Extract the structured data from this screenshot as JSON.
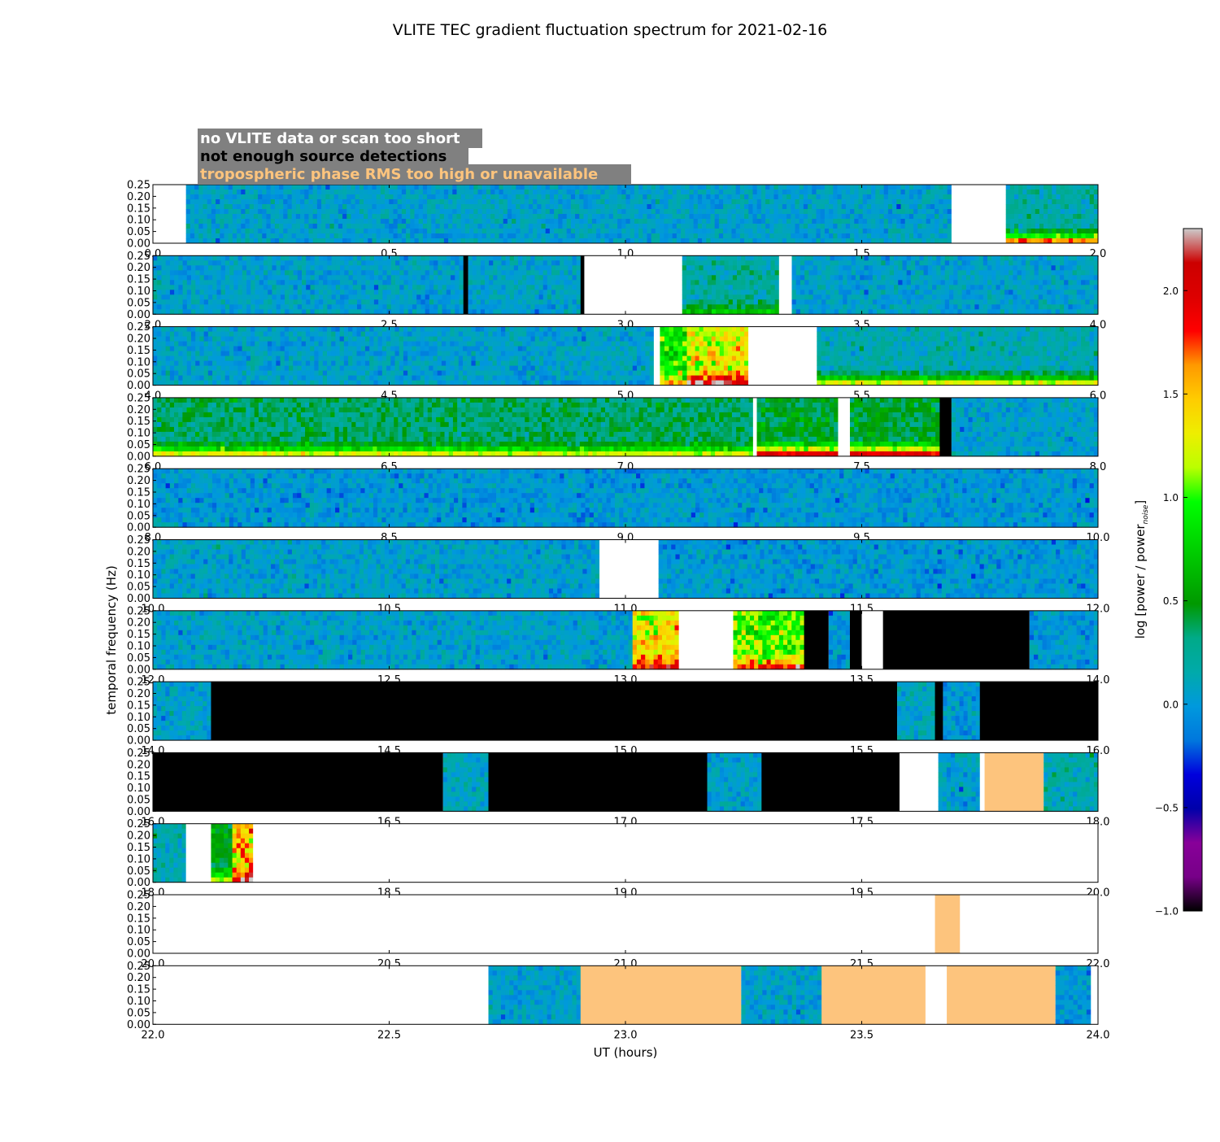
{
  "chart_data": {
    "type": "heatmap",
    "title": "VLITE TEC gradient fluctuation spectrum for 2021-02-16",
    "xlabel": "UT (hours)",
    "ylabel": "temporal frequency (Hz)",
    "ylim": [
      0,
      0.25
    ],
    "yticks": [
      "0.00",
      "0.05",
      "0.10",
      "0.15",
      "0.20",
      "0.25"
    ],
    "colorbar": {
      "label_main": "log [power / power",
      "label_sub": "noise",
      "label_end": "]",
      "range": [
        -1.0,
        2.3
      ],
      "ticks": [
        "−1.0",
        "−0.5",
        "0.0",
        "0.5",
        "1.0",
        "1.5",
        "2.0"
      ],
      "tick_values": [
        -1.0,
        -0.5,
        0.0,
        0.5,
        1.0,
        1.5,
        2.0
      ],
      "colormap": "nipy_spectral"
    },
    "legend": [
      {
        "text": "no VLITE data or scan too short",
        "color": "#ffffff"
      },
      {
        "text": "not enough source detections",
        "color": "#000000"
      },
      {
        "text": "tropospheric phase RMS too high or unavailable",
        "color": "#fdc47d"
      }
    ],
    "flag_colors": {
      "nodata": "#ffffff",
      "nodet": "#000000",
      "tropo": "#fdc47d"
    },
    "panels": [
      {
        "xlim": [
          0.0,
          2.0
        ],
        "xticks": [
          "0.0",
          "0.5",
          "1.0",
          "1.5",
          "2.0"
        ],
        "segments": [
          {
            "start": 0.0,
            "end": 0.07,
            "kind": "nodata"
          },
          {
            "start": 0.07,
            "end": 1.69,
            "kind": "data",
            "level": 0.05
          },
          {
            "start": 1.69,
            "end": 1.805,
            "kind": "nodata"
          },
          {
            "start": 1.805,
            "end": 2.0,
            "kind": "data",
            "level": 0.2,
            "low_boost": 1.4
          }
        ]
      },
      {
        "xlim": [
          2.0,
          4.0
        ],
        "xticks": [
          "2.0",
          "2.5",
          "3.0",
          "3.5",
          "4.0"
        ],
        "segments": [
          {
            "start": 2.0,
            "end": 2.657,
            "kind": "data",
            "level": 0.05
          },
          {
            "start": 2.657,
            "end": 2.667,
            "kind": "nodet"
          },
          {
            "start": 2.667,
            "end": 2.905,
            "kind": "data",
            "level": 0.05
          },
          {
            "start": 2.905,
            "end": 2.913,
            "kind": "nodet"
          },
          {
            "start": 2.913,
            "end": 3.12,
            "kind": "nodata"
          },
          {
            "start": 3.12,
            "end": 3.325,
            "kind": "data",
            "level": 0.2,
            "low_boost": 0.5
          },
          {
            "start": 3.325,
            "end": 3.352,
            "kind": "nodata"
          },
          {
            "start": 3.352,
            "end": 4.0,
            "kind": "data",
            "level": 0.05
          }
        ]
      },
      {
        "xlim": [
          4.0,
          6.0
        ],
        "xticks": [
          "4.0",
          "4.5",
          "5.0",
          "5.5",
          "6.0"
        ],
        "segments": [
          {
            "start": 4.0,
            "end": 5.06,
            "kind": "data",
            "level": 0.05
          },
          {
            "start": 5.06,
            "end": 5.073,
            "kind": "nodata"
          },
          {
            "start": 5.073,
            "end": 5.13,
            "kind": "data",
            "level": 0.85,
            "low_boost": 0.7
          },
          {
            "start": 5.13,
            "end": 5.26,
            "kind": "data",
            "level": 1.3,
            "low_boost": 0.9
          },
          {
            "start": 5.26,
            "end": 5.405,
            "kind": "nodata"
          },
          {
            "start": 5.405,
            "end": 6.0,
            "kind": "data",
            "level": 0.15,
            "low_boost": 1.1
          }
        ]
      },
      {
        "xlim": [
          6.0,
          8.0
        ],
        "xticks": [
          "6.0",
          "6.5",
          "7.0",
          "7.5",
          "8.0"
        ],
        "segments": [
          {
            "start": 6.0,
            "end": 7.27,
            "kind": "data",
            "level": 0.35,
            "low_boost": 0.9
          },
          {
            "start": 7.27,
            "end": 7.278,
            "kind": "nodata"
          },
          {
            "start": 7.278,
            "end": 7.45,
            "kind": "data",
            "level": 0.45,
            "low_boost": 1.5
          },
          {
            "start": 7.45,
            "end": 7.475,
            "kind": "nodata"
          },
          {
            "start": 7.475,
            "end": 7.665,
            "kind": "data",
            "level": 0.45,
            "low_boost": 1.5
          },
          {
            "start": 7.665,
            "end": 7.69,
            "kind": "nodet"
          },
          {
            "start": 7.69,
            "end": 8.0,
            "kind": "data",
            "level": 0.05
          }
        ]
      },
      {
        "xlim": [
          8.0,
          10.0
        ],
        "xticks": [
          "8.0",
          "8.5",
          "9.0",
          "9.5",
          "10.0"
        ],
        "segments": [
          {
            "start": 8.0,
            "end": 10.0,
            "kind": "data",
            "level": 0.0
          }
        ]
      },
      {
        "xlim": [
          10.0,
          12.0
        ],
        "xticks": [
          "10.0",
          "10.5",
          "11.0",
          "11.5",
          "12.0"
        ],
        "segments": [
          {
            "start": 10.0,
            "end": 10.945,
            "kind": "data",
            "level": 0.05
          },
          {
            "start": 10.945,
            "end": 11.07,
            "kind": "nodata"
          },
          {
            "start": 11.07,
            "end": 12.0,
            "kind": "data",
            "level": 0.0
          }
        ]
      },
      {
        "xlim": [
          12.0,
          14.0
        ],
        "xticks": [
          "12.0",
          "12.5",
          "13.0",
          "13.5",
          "14.0"
        ],
        "segments": [
          {
            "start": 12.0,
            "end": 13.015,
            "kind": "data",
            "level": 0.05
          },
          {
            "start": 13.015,
            "end": 13.113,
            "kind": "data",
            "level": 1.35,
            "low_boost": 0.6
          },
          {
            "start": 13.113,
            "end": 13.228,
            "kind": "nodata"
          },
          {
            "start": 13.228,
            "end": 13.378,
            "kind": "data",
            "level": 1.0,
            "low_boost": 0.8
          },
          {
            "start": 13.378,
            "end": 13.43,
            "kind": "nodet"
          },
          {
            "start": 13.43,
            "end": 13.475,
            "kind": "data",
            "level": 0.0
          },
          {
            "start": 13.475,
            "end": 13.5,
            "kind": "nodet"
          },
          {
            "start": 13.5,
            "end": 13.545,
            "kind": "nodata"
          },
          {
            "start": 13.545,
            "end": 13.855,
            "kind": "nodet"
          },
          {
            "start": 13.855,
            "end": 14.0,
            "kind": "data",
            "level": 0.0
          }
        ]
      },
      {
        "xlim": [
          14.0,
          16.0
        ],
        "xticks": [
          "14.0",
          "14.5",
          "15.0",
          "15.5",
          "16.0"
        ],
        "segments": [
          {
            "start": 14.0,
            "end": 14.123,
            "kind": "data",
            "level": 0.05
          },
          {
            "start": 14.123,
            "end": 15.575,
            "kind": "nodet"
          },
          {
            "start": 15.575,
            "end": 15.655,
            "kind": "data",
            "level": 0.1
          },
          {
            "start": 15.655,
            "end": 15.672,
            "kind": "nodet"
          },
          {
            "start": 15.672,
            "end": 15.75,
            "kind": "data",
            "level": 0.0
          },
          {
            "start": 15.75,
            "end": 16.0,
            "kind": "nodet"
          }
        ]
      },
      {
        "xlim": [
          16.0,
          18.0
        ],
        "xticks": [
          "16.0",
          "16.5",
          "17.0",
          "17.5",
          "18.0"
        ],
        "segments": [
          {
            "start": 16.0,
            "end": 16.614,
            "kind": "nodet"
          },
          {
            "start": 16.614,
            "end": 16.71,
            "kind": "data",
            "level": 0.1
          },
          {
            "start": 16.71,
            "end": 17.173,
            "kind": "nodet"
          },
          {
            "start": 17.173,
            "end": 17.288,
            "kind": "data",
            "level": 0.05
          },
          {
            "start": 17.288,
            "end": 17.58,
            "kind": "nodet"
          },
          {
            "start": 17.58,
            "end": 17.662,
            "kind": "nodata"
          },
          {
            "start": 17.662,
            "end": 17.75,
            "kind": "data",
            "level": 0.05
          },
          {
            "start": 17.75,
            "end": 17.76,
            "kind": "nodata"
          },
          {
            "start": 17.76,
            "end": 17.885,
            "kind": "tropo"
          },
          {
            "start": 17.885,
            "end": 18.0,
            "kind": "data",
            "level": 0.15
          }
        ]
      },
      {
        "xlim": [
          18.0,
          20.0
        ],
        "xticks": [
          "18.0",
          "18.5",
          "19.0",
          "19.5",
          "20.0"
        ],
        "segments": [
          {
            "start": 18.0,
            "end": 18.07,
            "kind": "data",
            "level": 0.15
          },
          {
            "start": 18.07,
            "end": 18.123,
            "kind": "nodata"
          },
          {
            "start": 18.123,
            "end": 18.168,
            "kind": "data",
            "level": 0.5,
            "low_boost": 0.6
          },
          {
            "start": 18.168,
            "end": 18.212,
            "kind": "data",
            "level": 1.5,
            "low_boost": 0.7
          },
          {
            "start": 18.212,
            "end": 20.0,
            "kind": "nodata"
          }
        ]
      },
      {
        "xlim": [
          20.0,
          22.0
        ],
        "xticks": [
          "20.0",
          "20.5",
          "21.0",
          "21.5",
          "22.0"
        ],
        "segments": [
          {
            "start": 20.0,
            "end": 21.655,
            "kind": "nodata"
          },
          {
            "start": 21.655,
            "end": 21.708,
            "kind": "tropo"
          },
          {
            "start": 21.708,
            "end": 22.0,
            "kind": "nodata"
          }
        ]
      },
      {
        "xlim": [
          22.0,
          24.0
        ],
        "xticks": [
          "22.0",
          "22.5",
          "23.0",
          "23.5",
          "24.0"
        ],
        "segments": [
          {
            "start": 22.0,
            "end": 22.71,
            "kind": "nodata"
          },
          {
            "start": 22.71,
            "end": 22.905,
            "kind": "data",
            "level": 0.05
          },
          {
            "start": 22.905,
            "end": 23.245,
            "kind": "tropo"
          },
          {
            "start": 23.245,
            "end": 23.415,
            "kind": "data",
            "level": 0.05
          },
          {
            "start": 23.415,
            "end": 23.635,
            "kind": "tropo"
          },
          {
            "start": 23.635,
            "end": 23.68,
            "kind": "nodata"
          },
          {
            "start": 23.68,
            "end": 23.91,
            "kind": "tropo"
          },
          {
            "start": 23.91,
            "end": 23.985,
            "kind": "data",
            "level": 0.0
          },
          {
            "start": 23.985,
            "end": 24.0,
            "kind": "nodata"
          }
        ]
      }
    ]
  }
}
